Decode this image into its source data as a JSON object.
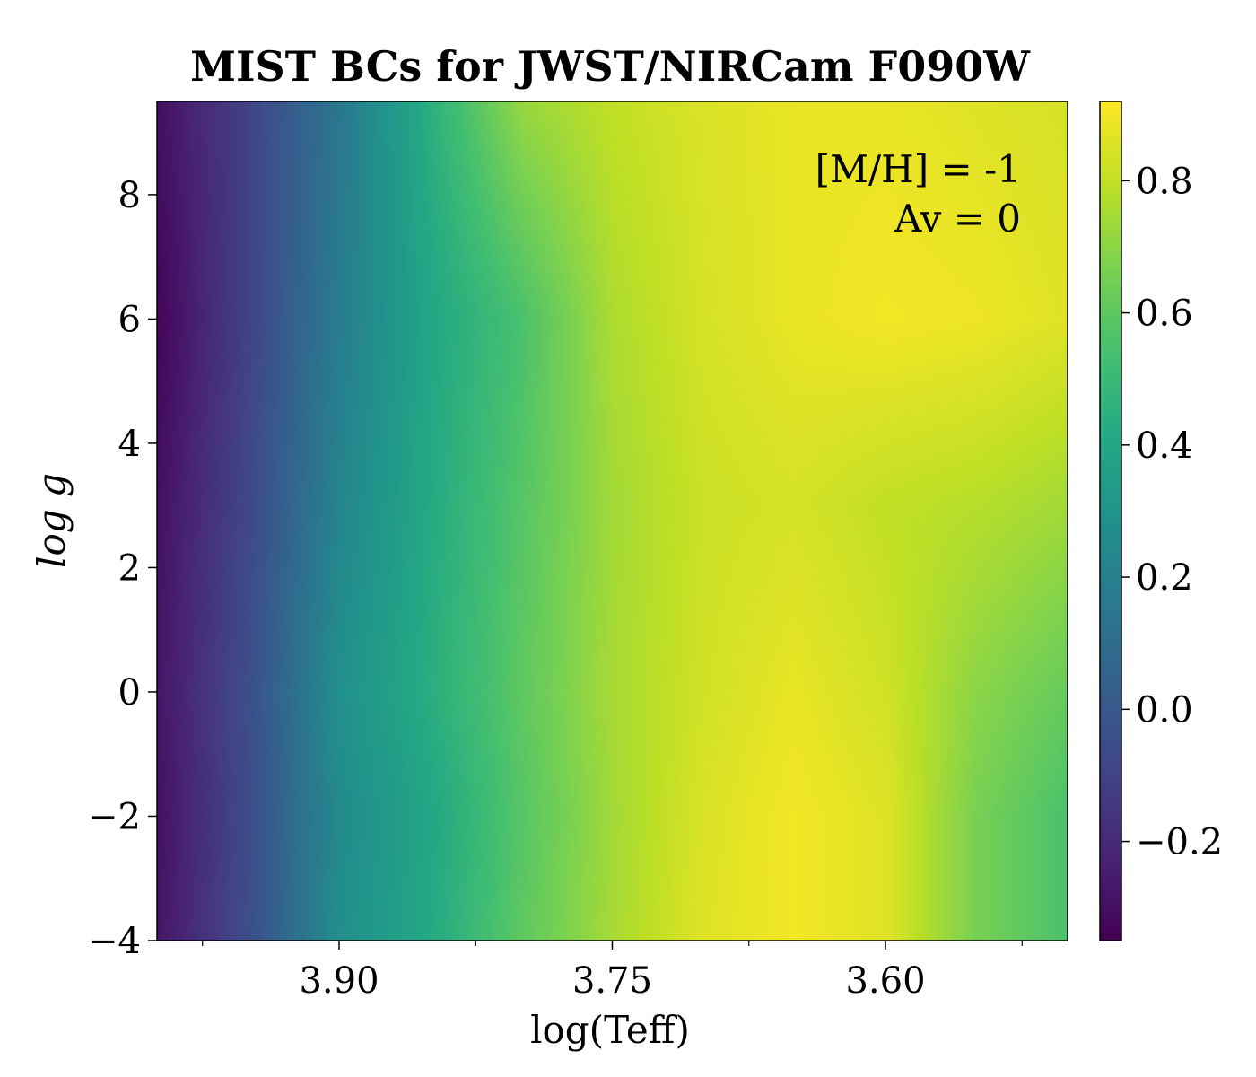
{
  "chart_data": {
    "type": "heatmap",
    "title": "MIST BCs for JWST/NIRCam F090W",
    "xlabel": "log(Teff)",
    "ylabel": "log g",
    "annotations": [
      "[M/H] = -1",
      "Av = 0"
    ],
    "x_reversed": true,
    "xlim": [
      4.0,
      3.5
    ],
    "ylim": [
      -4,
      9.5
    ],
    "xticks": [
      {
        "value": 3.9,
        "label": "3.90"
      },
      {
        "value": 3.75,
        "label": "3.75"
      },
      {
        "value": 3.6,
        "label": "3.60"
      }
    ],
    "x_minor_ticks": [
      3.975,
      3.825,
      3.675,
      3.525
    ],
    "yticks": [
      {
        "value": -4,
        "label": "−4"
      },
      {
        "value": -2,
        "label": "−2"
      },
      {
        "value": 0,
        "label": "0"
      },
      {
        "value": 2,
        "label": "2"
      },
      {
        "value": 4,
        "label": "4"
      },
      {
        "value": 6,
        "label": "6"
      },
      {
        "value": 8,
        "label": "8"
      }
    ],
    "colormap": "viridis",
    "colorbar": {
      "range": [
        -0.35,
        0.92
      ],
      "ticks": [
        {
          "value": -0.2,
          "label": "−0.2"
        },
        {
          "value": 0.0,
          "label": "0.0"
        },
        {
          "value": 0.2,
          "label": "0.2"
        },
        {
          "value": 0.4,
          "label": "0.4"
        },
        {
          "value": 0.6,
          "label": "0.6"
        },
        {
          "value": 0.8,
          "label": "0.8"
        }
      ]
    },
    "grid": false,
    "x": [
      4.0,
      3.95,
      3.9,
      3.85,
      3.8,
      3.75,
      3.7,
      3.65,
      3.6,
      3.55,
      3.5
    ],
    "y": [
      9.5,
      6,
      3,
      0,
      -2,
      -4
    ],
    "z": [
      [
        -0.3,
        -0.1,
        0.15,
        0.45,
        0.72,
        0.8,
        0.85,
        0.88,
        0.88,
        0.86,
        0.84
      ],
      [
        -0.34,
        -0.1,
        0.18,
        0.4,
        0.55,
        0.76,
        0.84,
        0.88,
        0.9,
        0.89,
        0.86
      ],
      [
        -0.3,
        -0.08,
        0.22,
        0.42,
        0.58,
        0.74,
        0.82,
        0.84,
        0.8,
        0.78,
        0.74
      ],
      [
        -0.28,
        -0.05,
        0.28,
        0.44,
        0.6,
        0.75,
        0.83,
        0.88,
        0.83,
        0.7,
        0.62
      ],
      [
        -0.3,
        -0.06,
        0.25,
        0.4,
        0.58,
        0.74,
        0.85,
        0.9,
        0.86,
        0.66,
        0.55
      ],
      [
        -0.28,
        -0.05,
        0.27,
        0.42,
        0.6,
        0.75,
        0.86,
        0.9,
        0.86,
        0.66,
        0.55
      ]
    ]
  }
}
